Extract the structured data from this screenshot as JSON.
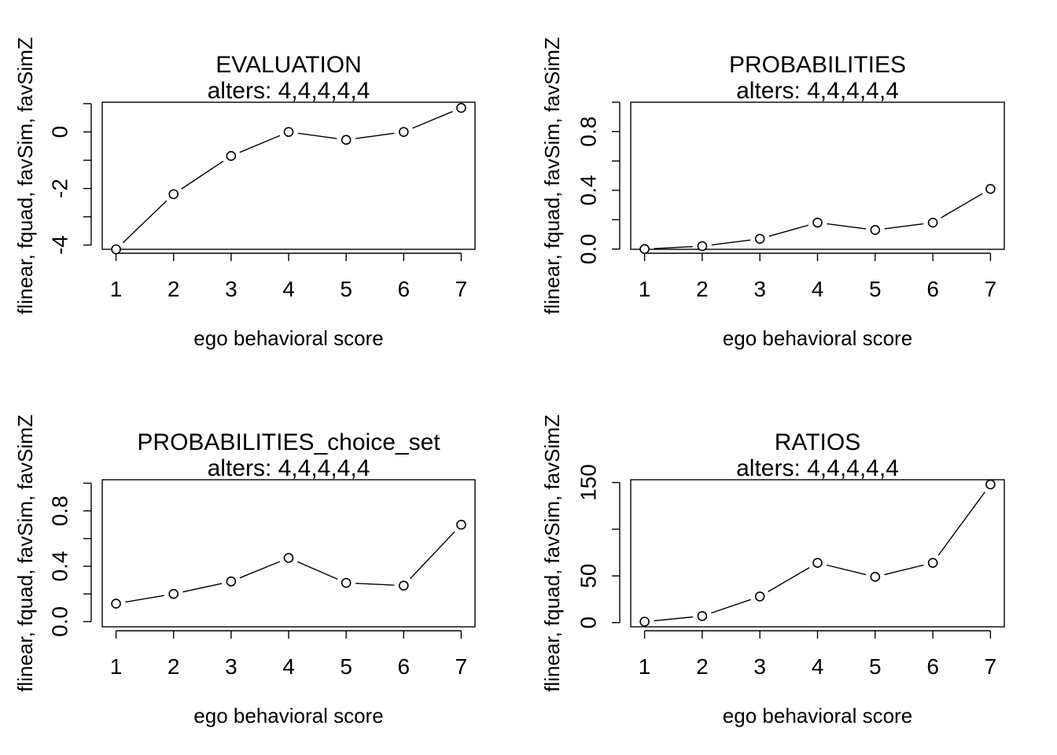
{
  "chart_data": [
    {
      "type": "line",
      "title": "EVALUATION",
      "subtitle": "alters: 4,4,4,4,4",
      "xlabel": "ego behavioral score",
      "ylabel": "flinear, fquad, favSim, favSimZ",
      "x": [
        1,
        2,
        3,
        4,
        5,
        6,
        7
      ],
      "values": [
        -4.15,
        -2.2,
        -0.85,
        0.0,
        -0.28,
        0.0,
        0.85
      ],
      "xlim": [
        0.76,
        7.24
      ],
      "ylim": [
        -4.15,
        1.05
      ],
      "xticks": [
        "1",
        "2",
        "3",
        "4",
        "5",
        "6",
        "7"
      ],
      "yticks": [
        {
          "v": 0,
          "label": "0"
        },
        {
          "v": -2,
          "label": "-2"
        },
        {
          "v": -4,
          "label": "-4"
        }
      ],
      "yminor": [
        1,
        -1,
        -3
      ],
      "grid": false
    },
    {
      "type": "line",
      "title": "PROBABILITIES",
      "subtitle": "alters: 4,4,4,4,4",
      "xlabel": "ego behavioral score",
      "ylabel": "flinear, fquad, favSim, favSimZ",
      "x": [
        1,
        2,
        3,
        4,
        5,
        6,
        7
      ],
      "values": [
        0.0,
        0.02,
        0.07,
        0.18,
        0.13,
        0.18,
        0.41
      ],
      "xlim": [
        0.76,
        7.24
      ],
      "ylim": [
        -0.0016,
        1.0
      ],
      "xticks": [
        "1",
        "2",
        "3",
        "4",
        "5",
        "6",
        "7"
      ],
      "yticks": [
        {
          "v": 0,
          "label": "0.0"
        },
        {
          "v": 0.4,
          "label": "0.4"
        },
        {
          "v": 0.8,
          "label": "0.8"
        }
      ],
      "yminor": [
        0.2,
        0.6,
        1.0
      ],
      "grid": false
    },
    {
      "type": "line",
      "title": "PROBABILITIES_choice_set",
      "subtitle": "alters: 4,4,4,4,4",
      "xlabel": "ego behavioral score",
      "ylabel": "flinear, fquad, favSim, favSimZ",
      "x": [
        1,
        2,
        3,
        4,
        5,
        6,
        7
      ],
      "values": [
        0.13,
        0.2,
        0.29,
        0.46,
        0.28,
        0.26,
        0.7
      ],
      "xlim": [
        0.76,
        7.24
      ],
      "ylim": [
        -0.0375,
        1.025
      ],
      "xticks": [
        "1",
        "2",
        "3",
        "4",
        "5",
        "6",
        "7"
      ],
      "yticks": [
        {
          "v": 0,
          "label": "0.0"
        },
        {
          "v": 0.4,
          "label": "0.4"
        },
        {
          "v": 0.8,
          "label": "0.8"
        }
      ],
      "yminor": [
        0.2,
        0.6,
        1.0
      ],
      "grid": false
    },
    {
      "type": "line",
      "title": "RATIOS",
      "subtitle": "alters: 4,4,4,4,4",
      "xlabel": "ego behavioral score",
      "ylabel": "flinear, fquad, favSim, favSimZ",
      "x": [
        1,
        2,
        3,
        4,
        5,
        6,
        7
      ],
      "values": [
        1,
        7,
        28,
        64,
        49,
        64,
        148
      ],
      "xlim": [
        0.76,
        7.24
      ],
      "ylim": [
        -4.5,
        153
      ],
      "xticks": [
        "1",
        "2",
        "3",
        "4",
        "5",
        "6",
        "7"
      ],
      "yticks": [
        {
          "v": 0,
          "label": "0"
        },
        {
          "v": 50,
          "label": "50"
        },
        {
          "v": 150,
          "label": "150"
        }
      ],
      "yminor": [
        100
      ],
      "grid": false
    }
  ]
}
